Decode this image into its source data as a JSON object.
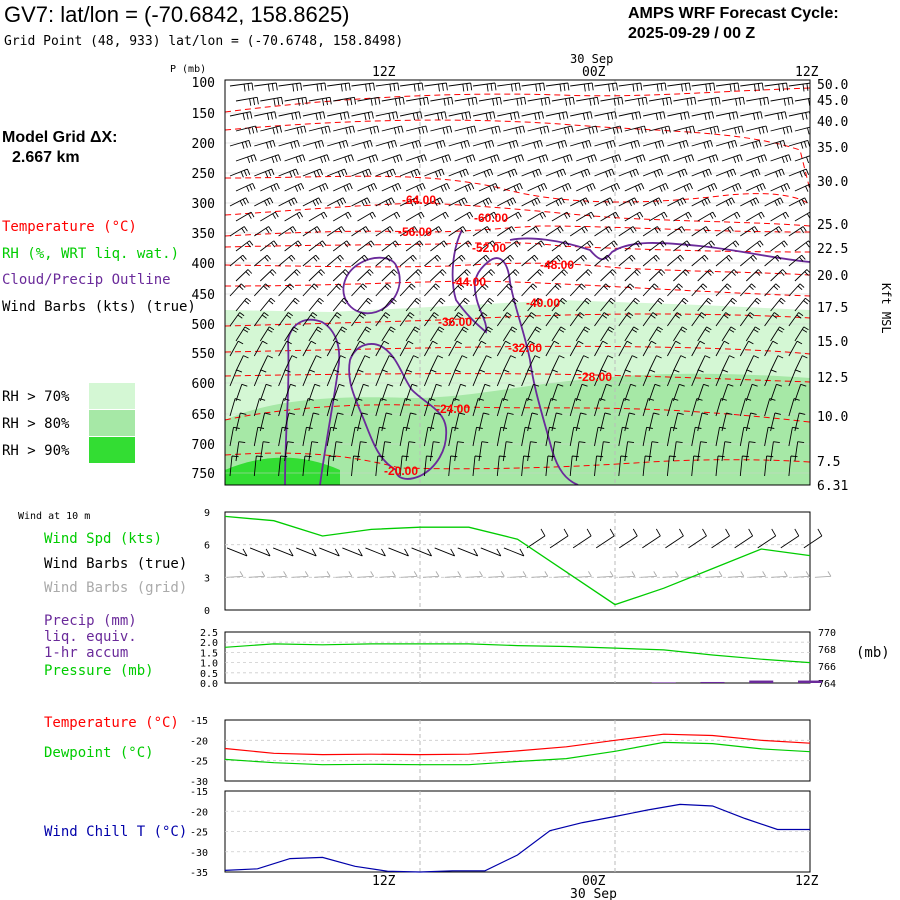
{
  "header": {
    "title": "GV7:  lat/lon = (-70.6842, 158.8625)",
    "grid_point": "Grid Point (48, 933) lat/lon = (-70.6748, 158.8498)",
    "cycle_line1": "AMPS WRF Forecast Cycle:",
    "cycle_line2": "2025-09-29 / 00  Z",
    "model_grid_label": "Model Grid ΔX:",
    "model_grid_value": "2.667 km"
  },
  "legend": {
    "temperature": "Temperature (°C)",
    "rh": "RH (%, WRT liq. wat.)",
    "cloud": "Cloud/Precip Outline",
    "wind_barbs": "Wind Barbs (kts) (true)",
    "rh70": "RH > 70%",
    "rh80": "RH > 80%",
    "rh90": "RH > 90%"
  },
  "colors": {
    "temperature": "#ff0000",
    "rh_label": "#00cc00",
    "cloud": "#6a2a9a",
    "rh70": "#d4f7d4",
    "rh80": "#a6e8a6",
    "rh90": "#33dd33",
    "wind_speed": "#00cc00",
    "grid_barb": "#aaaaaa",
    "precip": "#6a2a9a",
    "pressure": "#00cc00",
    "dewpoint": "#00cc00",
    "wind_chill": "#0000aa"
  },
  "chart_data": [
    {
      "type": "line",
      "panel": "cross-section",
      "title": "Time-height cross section",
      "ylabel_left": "P (mb)",
      "ylabel_right": "Kft MSL",
      "top_date": "30 Sep",
      "x_ticks": [
        "12Z",
        "00Z",
        "12Z"
      ],
      "pressure_ticks": [
        "100",
        "150",
        "200",
        "250",
        "300",
        "350",
        "400",
        "450",
        "500",
        "550",
        "600",
        "650",
        "700",
        "750"
      ],
      "height_ticks": [
        "50.0",
        "45.0",
        "40.0",
        "35.0",
        "30.0",
        "25.0",
        "22.5",
        "20.0",
        "17.5",
        "15.0",
        "12.5",
        "10.0",
        "7.5",
        "6.31"
      ],
      "isotherm_labels": [
        "-64.00",
        "-60.00",
        "-56.00",
        "-52.00",
        "-48.00",
        "-44.00",
        "-40.00",
        "-36.00",
        "-32.00",
        "-28.00",
        "-24.00",
        "-20.00"
      ]
    },
    {
      "type": "line",
      "panel": "wind-10m",
      "title": "Wind at 10 m",
      "legend": [
        "Wind Spd (kts)",
        "Wind Barbs (true)",
        "Wind Barbs (grid)"
      ],
      "y_ticks": [
        "9",
        "6",
        "3",
        "0"
      ],
      "ylim": [
        0,
        9
      ],
      "x_hours": [
        0,
        3,
        6,
        9,
        12,
        15,
        18,
        21,
        24,
        27,
        30,
        33,
        36
      ],
      "series": [
        {
          "name": "Wind Spd (kts)",
          "values": [
            8.6,
            8.2,
            6.8,
            7.4,
            7.6,
            7.6,
            6.5,
            3.5,
            0.5,
            2.0,
            3.8,
            5.6,
            5.0
          ]
        }
      ]
    },
    {
      "type": "line",
      "panel": "precip-pressure",
      "legend": [
        "Precip (mm)",
        "liq. equiv.",
        "1-hr accum",
        "Pressure (mb)"
      ],
      "y_ticks_left": [
        "2.5",
        "2.0",
        "1.5",
        "1.0",
        "0.5",
        "0.0"
      ],
      "y_ticks_right": [
        "770",
        "768",
        "766",
        "764"
      ],
      "right_unit": "(mb)",
      "ylim_left": [
        0,
        2.5
      ],
      "ylim_right": [
        764,
        770
      ],
      "x_hours": [
        0,
        3,
        6,
        9,
        12,
        15,
        18,
        21,
        24,
        27,
        30,
        33,
        36
      ],
      "series": [
        {
          "name": "Pressure (mb)",
          "values": [
            768.2,
            768.6,
            768.5,
            768.6,
            768.6,
            768.6,
            768.4,
            768.3,
            768.1,
            767.9,
            767.3,
            766.8,
            766.4
          ]
        },
        {
          "name": "Precip (mm)",
          "values": [
            0,
            0,
            0,
            0,
            0,
            0,
            0,
            0,
            0,
            0.03,
            0.05,
            0.12,
            0.12
          ]
        }
      ]
    },
    {
      "type": "line",
      "panel": "temperature-dewpoint",
      "legend": [
        "Temperature (°C)",
        "Dewpoint (°C)"
      ],
      "y_ticks": [
        "-15",
        "-20",
        "-25",
        "-30"
      ],
      "ylim": [
        -30,
        -15
      ],
      "x_hours": [
        0,
        3,
        6,
        9,
        12,
        15,
        18,
        21,
        24,
        27,
        30,
        33,
        36
      ],
      "series": [
        {
          "name": "Temperature (°C)",
          "values": [
            -22.0,
            -23.2,
            -23.5,
            -23.4,
            -23.5,
            -23.4,
            -22.6,
            -21.6,
            -20.0,
            -18.5,
            -18.8,
            -20.0,
            -20.7
          ]
        },
        {
          "name": "Dewpoint (°C)",
          "values": [
            -24.7,
            -25.5,
            -26.0,
            -25.9,
            -26.0,
            -26.0,
            -25.2,
            -24.5,
            -22.7,
            -20.5,
            -20.8,
            -22.1,
            -22.8
          ]
        }
      ]
    },
    {
      "type": "line",
      "panel": "wind-chill",
      "legend": [
        "Wind Chill T (°C)"
      ],
      "y_ticks": [
        "-15",
        "-20",
        "-25",
        "-30",
        "-35"
      ],
      "ylim": [
        -35,
        -15
      ],
      "x_hours": [
        0,
        2,
        4,
        6,
        8,
        10,
        12,
        14,
        16,
        18,
        20,
        22,
        24,
        26,
        28,
        30,
        32,
        34,
        36
      ],
      "series": [
        {
          "name": "Wind Chill T (°C)",
          "values": [
            -34.6,
            -34.2,
            -31.7,
            -31.4,
            -33.6,
            -34.8,
            -35.0,
            -34.7,
            -34.7,
            -30.8,
            -24.8,
            -22.8,
            -21.3,
            -19.7,
            -18.3,
            -18.7,
            -21.8,
            -24.5,
            -24.5
          ]
        }
      ],
      "x_ticks": [
        "12Z",
        "00Z",
        "12Z"
      ],
      "bottom_date": "30 Sep"
    }
  ]
}
